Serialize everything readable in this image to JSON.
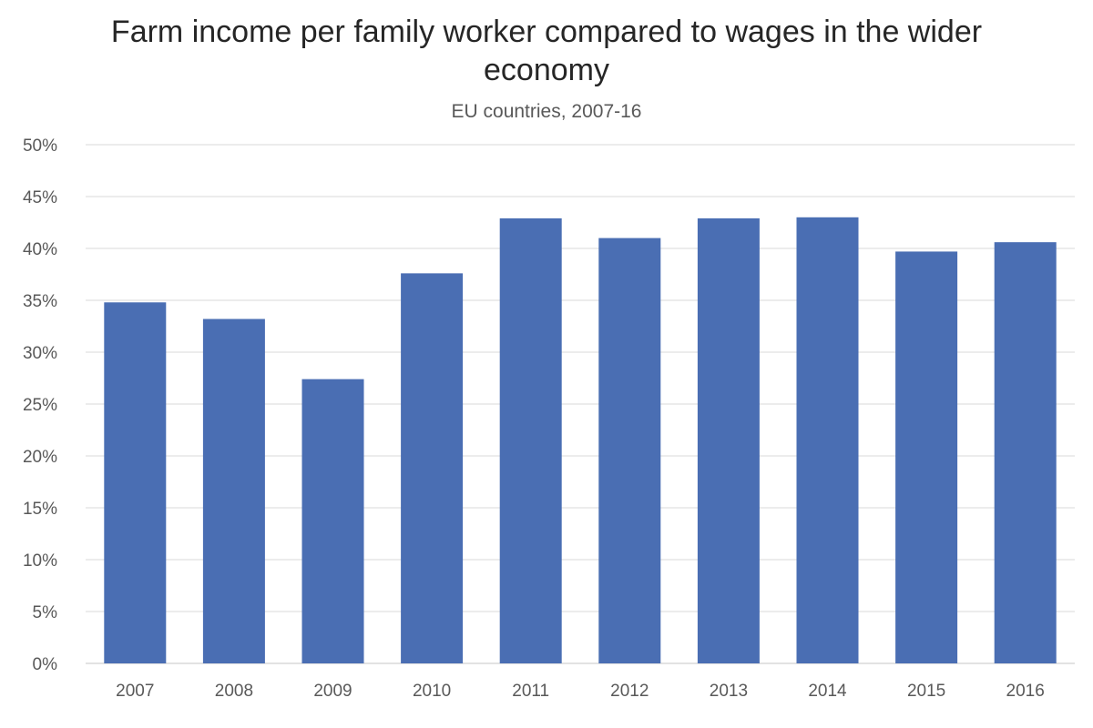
{
  "chart_data": {
    "type": "bar",
    "title": "Farm income per family worker compared to wages in the wider economy",
    "subtitle": "EU countries, 2007-16",
    "xlabel": "",
    "ylabel": "",
    "categories": [
      "2007",
      "2008",
      "2009",
      "2010",
      "2011",
      "2012",
      "2013",
      "2014",
      "2015",
      "2016"
    ],
    "series": [
      {
        "values": [
          34.8,
          33.2,
          27.4,
          37.6,
          42.9,
          41.0,
          42.9,
          43.0,
          39.7,
          40.6
        ]
      }
    ],
    "ylim": [
      0,
      50
    ],
    "y_ticks": [
      0,
      5,
      10,
      15,
      20,
      25,
      30,
      35,
      40,
      45,
      50
    ],
    "y_tick_suffix": "%",
    "grid": true,
    "legend": "none",
    "bar_color": "#4a6eb3",
    "grid_color": "#d9d9d9"
  }
}
